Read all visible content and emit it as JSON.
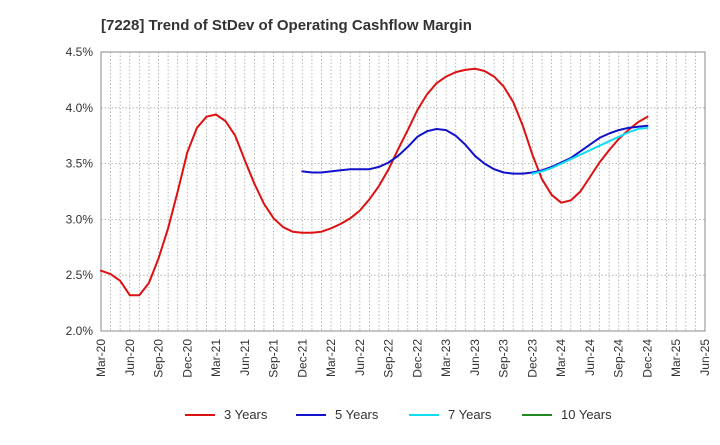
{
  "chart_data": {
    "type": "line",
    "title": "[7228]  Trend of StDev of Operating Cashflow Margin",
    "y_ticks": [
      "2.0%",
      "2.5%",
      "3.0%",
      "3.5%",
      "4.0%",
      "4.5%"
    ],
    "ylim": [
      2.0,
      4.5
    ],
    "y_unit": "%",
    "x_ticks": [
      "Mar-20",
      "Jun-20",
      "Sep-20",
      "Dec-20",
      "Mar-21",
      "Jun-21",
      "Sep-21",
      "Dec-21",
      "Mar-22",
      "Jun-22",
      "Sep-22",
      "Dec-22",
      "Mar-23",
      "Jun-23",
      "Sep-23",
      "Dec-23",
      "Mar-24",
      "Jun-24",
      "Sep-24",
      "Dec-24",
      "Mar-25",
      "Jun-25"
    ],
    "grid": true,
    "legend_position": "bottom",
    "series": [
      {
        "name": "3 Years",
        "color": "#dd1111",
        "points": [
          [
            "Mar-20",
            2.54
          ],
          [
            "Apr-20",
            2.51
          ],
          [
            "May-20",
            2.45
          ],
          [
            "Jun-20",
            2.32
          ],
          [
            "Jul-20",
            2.32
          ],
          [
            "Aug-20",
            2.43
          ],
          [
            "Sep-20",
            2.65
          ],
          [
            "Oct-20",
            2.92
          ],
          [
            "Nov-20",
            3.25
          ],
          [
            "Dec-20",
            3.6
          ],
          [
            "Jan-21",
            3.82
          ],
          [
            "Feb-21",
            3.92
          ],
          [
            "Mar-21",
            3.94
          ],
          [
            "Apr-21",
            3.88
          ],
          [
            "May-21",
            3.75
          ],
          [
            "Jun-21",
            3.53
          ],
          [
            "Jul-21",
            3.32
          ],
          [
            "Aug-21",
            3.14
          ],
          [
            "Sep-21",
            3.01
          ],
          [
            "Oct-21",
            2.93
          ],
          [
            "Nov-21",
            2.89
          ],
          [
            "Dec-21",
            2.88
          ],
          [
            "Jan-22",
            2.88
          ],
          [
            "Feb-22",
            2.89
          ],
          [
            "Mar-22",
            2.92
          ],
          [
            "Apr-22",
            2.96
          ],
          [
            "May-22",
            3.01
          ],
          [
            "Jun-22",
            3.08
          ],
          [
            "Jul-22",
            3.18
          ],
          [
            "Aug-22",
            3.3
          ],
          [
            "Sep-22",
            3.45
          ],
          [
            "Oct-22",
            3.63
          ],
          [
            "Nov-22",
            3.8
          ],
          [
            "Dec-22",
            3.98
          ],
          [
            "Jan-23",
            4.12
          ],
          [
            "Feb-23",
            4.22
          ],
          [
            "Mar-23",
            4.28
          ],
          [
            "Apr-23",
            4.32
          ],
          [
            "May-23",
            4.34
          ],
          [
            "Jun-23",
            4.35
          ],
          [
            "Jul-23",
            4.33
          ],
          [
            "Aug-23",
            4.28
          ],
          [
            "Sep-23",
            4.19
          ],
          [
            "Oct-23",
            4.05
          ],
          [
            "Nov-23",
            3.84
          ],
          [
            "Dec-23",
            3.58
          ],
          [
            "Jan-24",
            3.36
          ],
          [
            "Feb-24",
            3.22
          ],
          [
            "Mar-24",
            3.15
          ],
          [
            "Apr-24",
            3.17
          ],
          [
            "May-24",
            3.25
          ],
          [
            "Jun-24",
            3.38
          ],
          [
            "Jul-24",
            3.51
          ],
          [
            "Aug-24",
            3.62
          ],
          [
            "Sep-24",
            3.72
          ],
          [
            "Oct-24",
            3.8
          ],
          [
            "Nov-24",
            3.87
          ],
          [
            "Dec-24",
            3.92
          ]
        ]
      },
      {
        "name": "5 Years",
        "color": "#1111cc",
        "points": [
          [
            "Dec-21",
            3.43
          ],
          [
            "Jan-22",
            3.42
          ],
          [
            "Feb-22",
            3.42
          ],
          [
            "Mar-22",
            3.43
          ],
          [
            "Apr-22",
            3.44
          ],
          [
            "May-22",
            3.45
          ],
          [
            "Jun-22",
            3.45
          ],
          [
            "Jul-22",
            3.45
          ],
          [
            "Aug-22",
            3.47
          ],
          [
            "Sep-22",
            3.51
          ],
          [
            "Oct-22",
            3.57
          ],
          [
            "Nov-22",
            3.65
          ],
          [
            "Dec-22",
            3.74
          ],
          [
            "Jan-23",
            3.79
          ],
          [
            "Feb-23",
            3.81
          ],
          [
            "Mar-23",
            3.8
          ],
          [
            "Apr-23",
            3.75
          ],
          [
            "May-23",
            3.67
          ],
          [
            "Jun-23",
            3.57
          ],
          [
            "Jul-23",
            3.5
          ],
          [
            "Aug-23",
            3.45
          ],
          [
            "Sep-23",
            3.42
          ],
          [
            "Oct-23",
            3.41
          ],
          [
            "Nov-23",
            3.41
          ],
          [
            "Dec-23",
            3.42
          ],
          [
            "Jan-24",
            3.44
          ],
          [
            "Feb-24",
            3.47
          ],
          [
            "Mar-24",
            3.51
          ],
          [
            "Apr-24",
            3.55
          ],
          [
            "May-24",
            3.61
          ],
          [
            "Jun-24",
            3.67
          ],
          [
            "Jul-24",
            3.73
          ],
          [
            "Aug-24",
            3.77
          ],
          [
            "Sep-24",
            3.8
          ],
          [
            "Oct-24",
            3.82
          ],
          [
            "Nov-24",
            3.83
          ],
          [
            "Dec-24",
            3.84
          ]
        ]
      },
      {
        "name": "7 Years",
        "color": "#11ddee",
        "points": [
          [
            "Dec-23",
            3.41
          ],
          [
            "Jan-24",
            3.43
          ],
          [
            "Feb-24",
            3.46
          ],
          [
            "Mar-24",
            3.5
          ],
          [
            "Apr-24",
            3.54
          ],
          [
            "May-24",
            3.58
          ],
          [
            "Jun-24",
            3.62
          ],
          [
            "Jul-24",
            3.66
          ],
          [
            "Aug-24",
            3.7
          ],
          [
            "Sep-24",
            3.74
          ],
          [
            "Oct-24",
            3.78
          ],
          [
            "Nov-24",
            3.81
          ],
          [
            "Dec-24",
            3.82
          ]
        ]
      },
      {
        "name": "10 Years",
        "color": "#228822",
        "points": []
      }
    ]
  }
}
